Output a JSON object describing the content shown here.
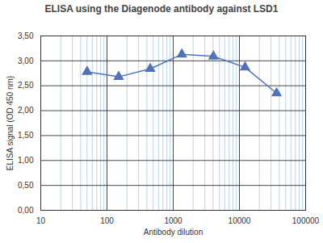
{
  "chart_data": {
    "type": "line",
    "title": "ELISA using the Diagenode antibody against LSD1",
    "xlabel": "Antibody dilution",
    "ylabel": "ELISA signal (OD 450 nm)",
    "x": [
      50,
      150,
      450,
      1350,
      4050,
      12150,
      36450
    ],
    "values": [
      2.78,
      2.68,
      2.84,
      3.13,
      3.09,
      2.87,
      2.35
    ],
    "color": "#4f72b8",
    "marker": "triangle",
    "line_style": "solid",
    "log": "x",
    "grid": true,
    "xlim": [
      10,
      100000
    ],
    "xticks": [
      10,
      100,
      1000,
      10000,
      100000
    ],
    "ylim": [
      0,
      3.5
    ],
    "yticks": [
      {
        "value": 0,
        "label": "0,00"
      },
      {
        "value": 0.5,
        "label": "0,50"
      },
      {
        "value": 1,
        "label": "1,00"
      },
      {
        "value": 1.5,
        "label": "1,50"
      },
      {
        "value": 2,
        "label": "2,00"
      },
      {
        "value": 2.5,
        "label": "2,50"
      },
      {
        "value": 3,
        "label": "3,00"
      },
      {
        "value": 3.5,
        "label": "3,50"
      }
    ]
  }
}
